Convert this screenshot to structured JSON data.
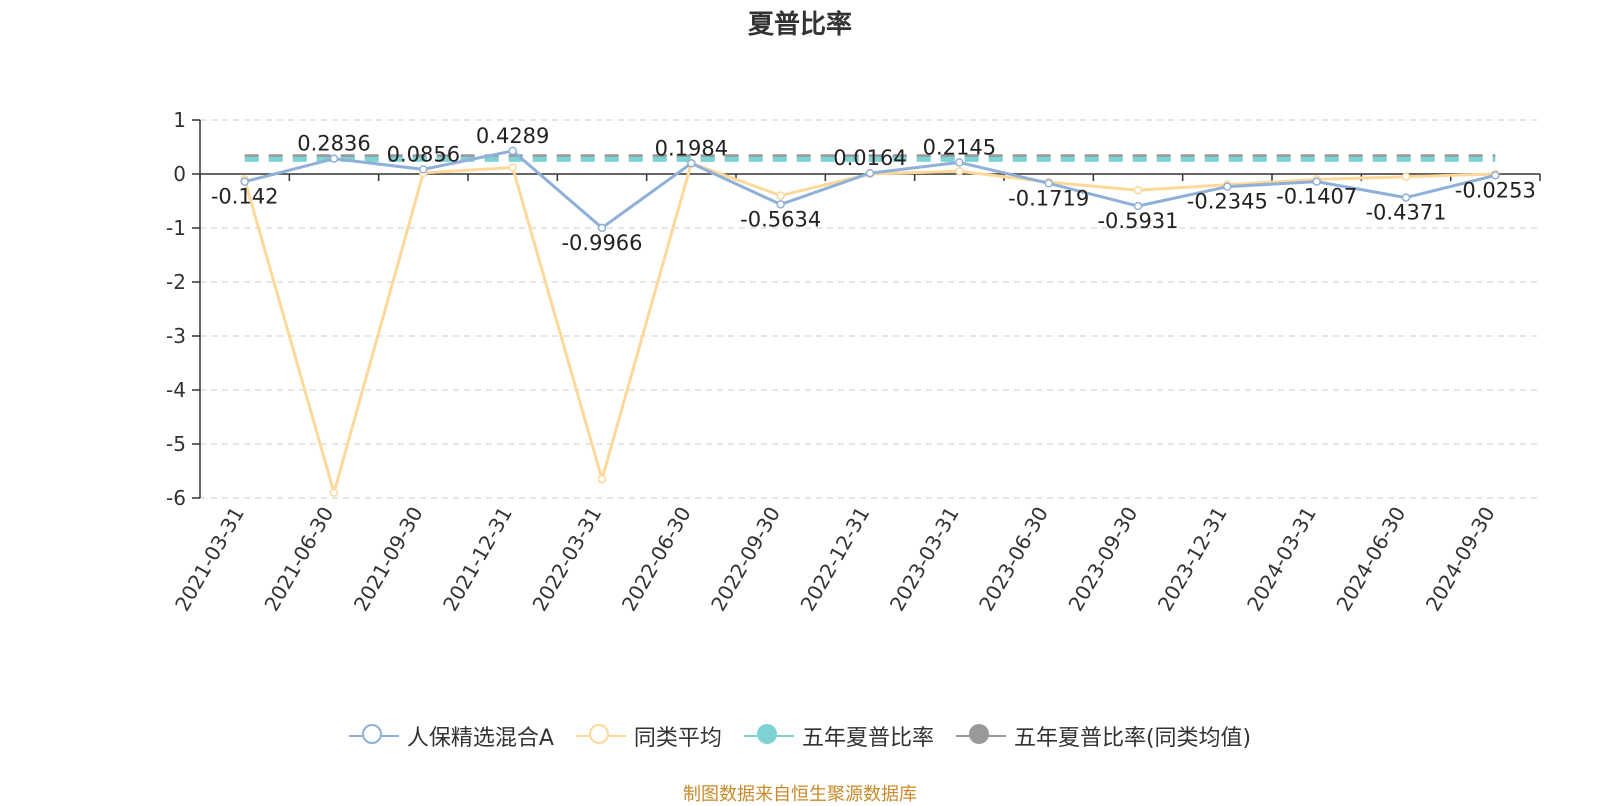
{
  "chart_data": {
    "type": "line",
    "title": "夏普比率",
    "categories": [
      "2021-03-31",
      "2021-06-30",
      "2021-09-30",
      "2021-12-31",
      "2022-03-31",
      "2022-06-30",
      "2022-09-30",
      "2022-12-31",
      "2023-03-31",
      "2023-06-30",
      "2023-09-30",
      "2023-12-31",
      "2024-03-31",
      "2024-06-30",
      "2024-09-30"
    ],
    "ylim": [
      -6,
      1
    ],
    "yticks": [
      1,
      0,
      -1,
      -2,
      -3,
      -4,
      -5,
      -6
    ],
    "grid": true,
    "legend_position": "bottom",
    "series": [
      {
        "name": "人保精选混合A",
        "color": "#8fb0d8",
        "marker": "hollow-circle",
        "values": [
          -0.142,
          0.2836,
          0.0856,
          0.4289,
          -0.9966,
          0.1984,
          -0.5634,
          0.0164,
          0.2145,
          -0.1719,
          -0.5931,
          -0.2345,
          -0.1407,
          -0.4371,
          -0.0253
        ],
        "data_labels": [
          "-0.142",
          "0.2836",
          "0.0856",
          "0.4289",
          "-0.9966",
          "0.1984",
          "-0.5634",
          "0.0164",
          "0.2145",
          "-0.1719",
          "-0.5931",
          "-0.2345",
          "-0.1407",
          "-0.4371",
          "-0.0253"
        ]
      },
      {
        "name": "同类平均",
        "color": "#fdd89a",
        "marker": "hollow-circle",
        "values": [
          -0.1,
          -5.9,
          0.02,
          0.12,
          -5.65,
          0.2,
          -0.4,
          0.0,
          0.05,
          -0.15,
          -0.3,
          -0.2,
          -0.1,
          -0.05,
          0.0
        ]
      },
      {
        "name": "五年夏普比率",
        "color": "#7dd3d3",
        "marker": "filled-circle",
        "style": "dashed",
        "value": 0.27
      },
      {
        "name": "五年夏普比率(同类均值)",
        "color": "#999999",
        "marker": "filled-circle",
        "style": "dashed",
        "value": 0.32
      }
    ]
  },
  "source": "制图数据来自恒生聚源数据库"
}
